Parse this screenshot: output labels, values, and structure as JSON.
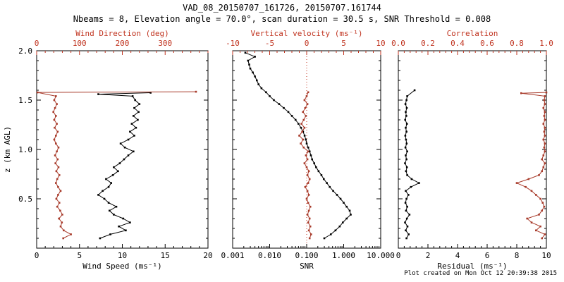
{
  "header": {
    "title": "VAD_08_20150707_161726, 20150707.161744",
    "subtitle": "Nbeams = 8, Elevation angle = 70.0°, scan duration = 30.5 s, SNR Threshold = 0.008"
  },
  "footer": {
    "created": "Plot created on Mon Oct 12 20:39:38 2015"
  },
  "colors": {
    "black": "#000000",
    "axis_red": "#c0331f",
    "curve_red": "#a83b2b"
  },
  "chart_data": {
    "type": "line",
    "figure": "VAD lidar profile triple panel",
    "y_axis": {
      "label": "z (km AGL)",
      "lim": [
        0,
        2
      ],
      "ticks": [
        0.5,
        1.0,
        1.5,
        2.0
      ],
      "labels": [
        "0.5",
        "1.0",
        "1.5",
        "2.0"
      ],
      "minor": 0.1
    },
    "panels": [
      {
        "id": "wind",
        "bottom": {
          "label": "Wind Speed (ms⁻¹)",
          "lim": [
            0,
            20
          ],
          "ticks": [
            0,
            5,
            10,
            15,
            20
          ],
          "labels": [
            "0",
            "5",
            "10",
            "15",
            "20"
          ],
          "minor": 1,
          "log": false
        },
        "top": {
          "label": "Wind Direction (deg)",
          "lim": [
            0,
            400
          ],
          "ticks": [
            0,
            100,
            200,
            300
          ],
          "labels": [
            "0",
            "100",
            "200",
            "300"
          ],
          "minor": 20,
          "log": false
        },
        "series": [
          {
            "name": "wind-speed",
            "axis": "bottom",
            "color": "black",
            "z": [
              0.1,
              0.14,
              0.18,
              0.22,
              0.26,
              0.3,
              0.34,
              0.38,
              0.42,
              0.46,
              0.5,
              0.54,
              0.58,
              0.62,
              0.66,
              0.7,
              0.74,
              0.78,
              0.82,
              0.86,
              0.9,
              0.94,
              0.98,
              1.02,
              1.06,
              1.1,
              1.14,
              1.18,
              1.22,
              1.26,
              1.3,
              1.34,
              1.38,
              1.42,
              1.46,
              1.5,
              1.54,
              1.56,
              1.575
            ],
            "v": [
              7.4,
              8.6,
              10.4,
              9.6,
              10.9,
              10.1,
              9.0,
              8.5,
              9.3,
              8.4,
              7.9,
              7.2,
              7.7,
              8.4,
              8.7,
              8.1,
              8.9,
              9.5,
              9.0,
              9.7,
              10.2,
              10.7,
              11.3,
              10.3,
              9.8,
              10.7,
              11.4,
              10.9,
              11.6,
              11.1,
              11.8,
              11.3,
              11.9,
              11.4,
              12.0,
              11.5,
              11.2,
              7.2,
              13.3
            ]
          },
          {
            "name": "wind-direction",
            "axis": "top",
            "color": "red",
            "z": [
              0.1,
              0.14,
              0.18,
              0.22,
              0.26,
              0.3,
              0.34,
              0.38,
              0.42,
              0.46,
              0.5,
              0.54,
              0.58,
              0.62,
              0.66,
              0.7,
              0.74,
              0.78,
              0.82,
              0.86,
              0.9,
              0.94,
              0.98,
              1.02,
              1.06,
              1.1,
              1.14,
              1.18,
              1.22,
              1.26,
              1.3,
              1.34,
              1.38,
              1.42,
              1.46,
              1.5,
              1.54,
              1.578,
              1.585
            ],
            "v": [
              62,
              80,
              63,
              56,
              59,
              52,
              60,
              55,
              48,
              53,
              46,
              50,
              56,
              50,
              45,
              48,
              53,
              46,
              51,
              44,
              49,
              43,
              47,
              51,
              45,
              41,
              45,
              49,
              42,
              47,
              41,
              45,
              39,
              43,
              47,
              41,
              45,
              2,
              372
            ]
          }
        ]
      },
      {
        "id": "snr",
        "zero_line": {
          "axis": "top",
          "value": 0
        },
        "bottom": {
          "label": "SNR",
          "lim": [
            0.001,
            10
          ],
          "ticks": [
            0.001,
            0.01,
            0.1,
            1,
            10
          ],
          "labels": [
            "0.001",
            "0.010",
            "0.100",
            "1.000",
            "10.000"
          ],
          "log": true
        },
        "top": {
          "label": "Vertical velocity (ms⁻¹)",
          "lim": [
            -10,
            10
          ],
          "ticks": [
            -10,
            -5,
            0,
            5,
            10
          ],
          "labels": [
            "-10",
            "-5",
            "0",
            "5",
            "10"
          ],
          "minor": 1,
          "log": false
        },
        "series": [
          {
            "name": "snr",
            "axis": "bottom",
            "color": "black",
            "z": [
              0.1,
              0.14,
              0.18,
              0.22,
              0.26,
              0.3,
              0.34,
              0.38,
              0.42,
              0.46,
              0.5,
              0.54,
              0.58,
              0.62,
              0.66,
              0.7,
              0.74,
              0.78,
              0.82,
              0.86,
              0.9,
              0.94,
              0.98,
              1.02,
              1.06,
              1.1,
              1.14,
              1.18,
              1.22,
              1.26,
              1.3,
              1.34,
              1.38,
              1.42,
              1.46,
              1.5,
              1.54,
              1.58,
              1.62,
              1.66,
              1.7,
              1.74,
              1.78,
              1.82,
              1.86,
              1.9,
              1.94,
              1.98
            ],
            "v": [
              0.3,
              0.45,
              0.6,
              0.78,
              0.95,
              1.2,
              1.55,
              1.45,
              1.2,
              1.0,
              0.82,
              0.66,
              0.52,
              0.42,
              0.35,
              0.29,
              0.25,
              0.21,
              0.18,
              0.16,
              0.14,
              0.13,
              0.12,
              0.11,
              0.1,
              0.095,
              0.088,
              0.08,
              0.07,
              0.06,
              0.05,
              0.04,
              0.032,
              0.024,
              0.018,
              0.013,
              0.01,
              0.008,
              0.006,
              0.005,
              0.0045,
              0.004,
              0.0035,
              0.003,
              0.0028,
              0.0026,
              0.004,
              0.0022
            ]
          },
          {
            "name": "vertical-velocity",
            "axis": "top",
            "color": "red",
            "z": [
              0.1,
              0.14,
              0.18,
              0.22,
              0.26,
              0.3,
              0.34,
              0.38,
              0.42,
              0.46,
              0.5,
              0.54,
              0.58,
              0.62,
              0.66,
              0.7,
              0.74,
              0.78,
              0.82,
              0.86,
              0.9,
              0.94,
              0.98,
              1.02,
              1.06,
              1.1,
              1.14,
              1.18,
              1.22,
              1.26,
              1.3,
              1.34,
              1.38,
              1.42,
              1.46,
              1.5,
              1.54,
              1.58
            ],
            "v": [
              0.4,
              0.6,
              0.3,
              0.5,
              0.2,
              0.4,
              0.1,
              0.3,
              0.5,
              0.2,
              0.0,
              0.3,
              0.1,
              -0.2,
              0.2,
              0.4,
              0.1,
              0.3,
              0.0,
              -0.3,
              0.1,
              -0.1,
              0.2,
              -0.4,
              -0.8,
              -0.5,
              -1.0,
              -0.6,
              -0.3,
              -0.7,
              -0.4,
              -0.1,
              -0.5,
              -0.2,
              0.1,
              -0.3,
              0.0,
              0.2
            ]
          }
        ]
      },
      {
        "id": "residual",
        "bottom": {
          "label": "Residual (ms⁻¹)",
          "lim": [
            0,
            10
          ],
          "ticks": [
            0,
            2,
            4,
            6,
            8,
            10
          ],
          "labels": [
            "0",
            "2",
            "4",
            "6",
            "8",
            "10"
          ],
          "minor": 0.4,
          "log": false
        },
        "top": {
          "label": "Correlation",
          "lim": [
            0,
            1
          ],
          "ticks": [
            0.0,
            0.2,
            0.4,
            0.6,
            0.8,
            1.0
          ],
          "labels": [
            "0.0",
            "0.2",
            "0.4",
            "0.6",
            "0.8",
            "1.0"
          ],
          "minor": 0.04,
          "log": false
        },
        "series": [
          {
            "name": "residual",
            "axis": "bottom",
            "color": "black",
            "z": [
              0.1,
              0.14,
              0.18,
              0.22,
              0.26,
              0.3,
              0.34,
              0.38,
              0.42,
              0.46,
              0.5,
              0.54,
              0.58,
              0.62,
              0.66,
              0.7,
              0.74,
              0.78,
              0.82,
              0.86,
              0.9,
              0.94,
              0.98,
              1.02,
              1.06,
              1.1,
              1.14,
              1.18,
              1.22,
              1.26,
              1.3,
              1.34,
              1.38,
              1.42,
              1.46,
              1.5,
              1.54,
              1.6
            ],
            "v": [
              0.55,
              0.7,
              0.5,
              0.62,
              0.45,
              0.58,
              0.75,
              0.52,
              0.6,
              0.48,
              0.55,
              0.68,
              0.5,
              0.85,
              1.4,
              0.9,
              0.6,
              0.52,
              0.58,
              0.45,
              0.55,
              0.5,
              0.6,
              0.48,
              0.56,
              0.52,
              0.47,
              0.55,
              0.5,
              0.58,
              0.46,
              0.54,
              0.5,
              0.57,
              0.48,
              0.55,
              0.6,
              1.1
            ]
          },
          {
            "name": "correlation",
            "axis": "top",
            "color": "red",
            "z": [
              0.1,
              0.14,
              0.18,
              0.22,
              0.26,
              0.3,
              0.34,
              0.38,
              0.42,
              0.46,
              0.5,
              0.54,
              0.58,
              0.62,
              0.66,
              0.7,
              0.74,
              0.78,
              0.82,
              0.86,
              0.9,
              0.94,
              0.98,
              1.02,
              1.06,
              1.1,
              1.14,
              1.18,
              1.22,
              1.26,
              1.3,
              1.34,
              1.38,
              1.42,
              1.46,
              1.5,
              1.54,
              1.57,
              1.578
            ],
            "v": [
              0.97,
              0.99,
              0.93,
              0.96,
              0.9,
              0.87,
              0.95,
              0.97,
              0.985,
              0.975,
              0.96,
              0.93,
              0.9,
              0.86,
              0.8,
              0.88,
              0.95,
              0.97,
              0.98,
              0.99,
              0.97,
              0.98,
              0.99,
              0.985,
              0.99,
              0.98,
              0.99,
              0.985,
              0.99,
              0.98,
              0.99,
              0.985,
              0.99,
              0.98,
              0.99,
              0.985,
              0.99,
              0.83,
              1.0
            ]
          }
        ]
      }
    ]
  }
}
